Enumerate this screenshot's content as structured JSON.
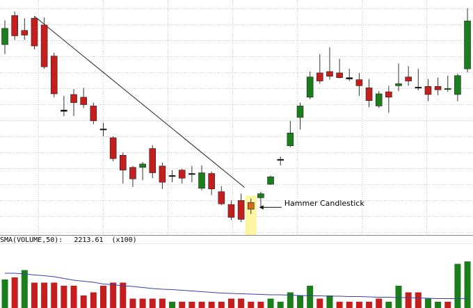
{
  "chart_data": [
    {
      "type": "candlestick",
      "grid": true,
      "ylim": [
        0,
        340
      ],
      "annotation": {
        "label": "Hammer Candlestick",
        "candle_index": 25
      },
      "trendline": {
        "from_index": 3,
        "to_index": 24
      },
      "candles": [
        {
          "o": 300,
          "c": 276,
          "h": 312,
          "l": 262,
          "color": "green"
        },
        {
          "o": 289,
          "c": 319,
          "h": 325,
          "l": 283,
          "color": "red"
        },
        {
          "o": 290,
          "c": 297,
          "h": 315,
          "l": 283,
          "color": "red"
        },
        {
          "o": 274,
          "c": 315,
          "h": 318,
          "l": 269,
          "color": "red"
        },
        {
          "o": 305,
          "c": 243,
          "h": 316,
          "l": 240,
          "color": "red"
        },
        {
          "o": 259,
          "c": 203,
          "h": 264,
          "l": 198,
          "color": "red"
        },
        {
          "o": 179,
          "c": 177,
          "h": 200,
          "l": 170,
          "color": "black"
        },
        {
          "o": 202,
          "c": 190,
          "h": 210,
          "l": 170,
          "color": "red"
        },
        {
          "o": 187,
          "c": 198,
          "h": 212,
          "l": 182,
          "color": "red"
        },
        {
          "o": 163,
          "c": 185,
          "h": 190,
          "l": 158,
          "color": "red"
        },
        {
          "o": 150,
          "c": 151,
          "h": 160,
          "l": 140,
          "color": "black"
        },
        {
          "o": 107,
          "c": 138,
          "h": 140,
          "l": 103,
          "color": "red"
        },
        {
          "o": 112,
          "c": 90,
          "h": 116,
          "l": 70,
          "color": "red"
        },
        {
          "o": 77,
          "c": 94,
          "h": 96,
          "l": 65,
          "color": "red"
        },
        {
          "o": 99,
          "c": 94,
          "h": 102,
          "l": 75,
          "color": "green"
        },
        {
          "o": 86,
          "c": 122,
          "h": 127,
          "l": 78,
          "color": "red"
        },
        {
          "o": 96,
          "c": 72,
          "h": 101,
          "l": 62,
          "color": "red"
        },
        {
          "o": 82,
          "c": 81,
          "h": 90,
          "l": 72,
          "color": "black"
        },
        {
          "o": 90,
          "c": 78,
          "h": 92,
          "l": 70,
          "color": "red"
        },
        {
          "o": 85,
          "c": 84,
          "h": 96,
          "l": 72,
          "color": "black"
        },
        {
          "o": 63,
          "c": 86,
          "h": 97,
          "l": 60,
          "color": "green"
        },
        {
          "o": 62,
          "c": 85,
          "h": 88,
          "l": 53,
          "color": "red"
        },
        {
          "o": 58,
          "c": 40,
          "h": 66,
          "l": 38,
          "color": "red"
        },
        {
          "o": 20,
          "c": 39,
          "h": 45,
          "l": 16,
          "color": "red"
        },
        {
          "o": 17,
          "c": 45,
          "h": 55,
          "l": 13,
          "color": "red"
        },
        {
          "o": 32,
          "c": 42,
          "h": 48,
          "l": 25,
          "color": "orange"
        },
        {
          "o": 49,
          "c": 55,
          "h": 58,
          "l": 34,
          "color": "green"
        },
        {
          "o": 69,
          "c": 80,
          "h": 82,
          "l": 68,
          "color": "green"
        },
        {
          "o": 105,
          "c": 106,
          "h": 110,
          "l": 97,
          "color": "black"
        },
        {
          "o": 126,
          "c": 145,
          "h": 163,
          "l": 124,
          "color": "green"
        },
        {
          "o": 168,
          "c": 185,
          "h": 190,
          "l": 150,
          "color": "green"
        },
        {
          "o": 198,
          "c": 228,
          "h": 236,
          "l": 195,
          "color": "green"
        },
        {
          "o": 234,
          "c": 222,
          "h": 262,
          "l": 218,
          "color": "red"
        },
        {
          "o": 236,
          "c": 229,
          "h": 272,
          "l": 224,
          "color": "red"
        },
        {
          "o": 234,
          "c": 227,
          "h": 255,
          "l": 226,
          "color": "red"
        },
        {
          "o": 227,
          "c": 225,
          "h": 240,
          "l": 222,
          "color": "black"
        },
        {
          "o": 224,
          "c": 215,
          "h": 234,
          "l": 200,
          "color": "red"
        },
        {
          "o": 212,
          "c": 193,
          "h": 225,
          "l": 183,
          "color": "red"
        },
        {
          "o": 185,
          "c": 203,
          "h": 207,
          "l": 182,
          "color": "green"
        },
        {
          "o": 206,
          "c": 198,
          "h": 215,
          "l": 175,
          "color": "red"
        },
        {
          "o": 215,
          "c": 218,
          "h": 248,
          "l": 207,
          "color": "green"
        },
        {
          "o": 228,
          "c": 222,
          "h": 244,
          "l": 215,
          "color": "red"
        },
        {
          "o": 213,
          "c": 212,
          "h": 240,
          "l": 208,
          "color": "black"
        },
        {
          "o": 214,
          "c": 202,
          "h": 225,
          "l": 192,
          "color": "red"
        },
        {
          "o": 214,
          "c": 209,
          "h": 227,
          "l": 201,
          "color": "red"
        },
        {
          "o": 210,
          "c": 211,
          "h": 230,
          "l": 206,
          "color": "green"
        },
        {
          "o": 202,
          "c": 230,
          "h": 233,
          "l": 192,
          "color": "green"
        },
        {
          "o": 240,
          "c": 311,
          "h": 330,
          "l": 235,
          "color": "green"
        }
      ]
    },
    {
      "type": "bar",
      "label": "SMA(VOLUME,50):",
      "value": "2213.61",
      "scale_note": "(x100)",
      "sma": [
        100,
        100,
        98,
        95,
        93,
        90,
        85,
        80,
        77,
        74,
        69,
        67,
        64,
        62,
        59,
        56,
        54,
        53,
        51,
        49,
        47,
        45,
        43,
        42,
        41,
        40,
        39,
        38,
        38,
        37,
        36,
        35,
        35,
        34,
        34,
        33,
        33,
        32,
        31,
        31,
        30,
        30,
        29,
        28,
        27,
        27,
        27,
        27
      ],
      "volume": [
        {
          "v": 82,
          "color": "green"
        },
        {
          "v": 88,
          "color": "red"
        },
        {
          "v": 109,
          "color": "green"
        },
        {
          "v": 73,
          "color": "red"
        },
        {
          "v": 73,
          "color": "red"
        },
        {
          "v": 73,
          "color": "red"
        },
        {
          "v": 64,
          "color": "red"
        },
        {
          "v": 64,
          "color": "red"
        },
        {
          "v": 36,
          "color": "red"
        },
        {
          "v": 45,
          "color": "red"
        },
        {
          "v": 64,
          "color": "red"
        },
        {
          "v": 73,
          "color": "red"
        },
        {
          "v": 73,
          "color": "red"
        },
        {
          "v": 27,
          "color": "red"
        },
        {
          "v": 27,
          "color": "red"
        },
        {
          "v": 27,
          "color": "red"
        },
        {
          "v": 27,
          "color": "red"
        },
        {
          "v": 18,
          "color": "green"
        },
        {
          "v": 18,
          "color": "red"
        },
        {
          "v": 18,
          "color": "red"
        },
        {
          "v": 18,
          "color": "red"
        },
        {
          "v": 18,
          "color": "red"
        },
        {
          "v": 18,
          "color": "red"
        },
        {
          "v": 27,
          "color": "red"
        },
        {
          "v": 27,
          "color": "red"
        },
        {
          "v": 18,
          "color": "red"
        },
        {
          "v": 18,
          "color": "red"
        },
        {
          "v": 27,
          "color": "green"
        },
        {
          "v": 18,
          "color": "green"
        },
        {
          "v": 45,
          "color": "green"
        },
        {
          "v": 36,
          "color": "green"
        },
        {
          "v": 64,
          "color": "green"
        },
        {
          "v": 27,
          "color": "red"
        },
        {
          "v": 36,
          "color": "green"
        },
        {
          "v": 18,
          "color": "red"
        },
        {
          "v": 18,
          "color": "red"
        },
        {
          "v": 18,
          "color": "red"
        },
        {
          "v": 18,
          "color": "red"
        },
        {
          "v": 27,
          "color": "red"
        },
        {
          "v": 18,
          "color": "green"
        },
        {
          "v": 64,
          "color": "green"
        },
        {
          "v": 45,
          "color": "red"
        },
        {
          "v": 45,
          "color": "red"
        },
        {
          "v": 27,
          "color": "green"
        },
        {
          "v": 18,
          "color": "green"
        },
        {
          "v": 18,
          "color": "red"
        },
        {
          "v": 127,
          "color": "green"
        },
        {
          "v": 134,
          "color": "green"
        }
      ]
    }
  ],
  "colors": {
    "up": "#1a7f1a",
    "down": "#c41e1e",
    "doji": "#111111",
    "hammer": "#d06a1a",
    "highlight": "#fdf6a0",
    "grid": "#c8c8c8",
    "sma": "#3b3bb5",
    "trendline": "#222222"
  }
}
